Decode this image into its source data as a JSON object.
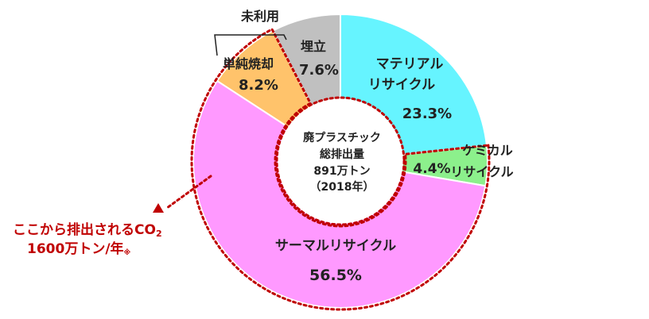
{
  "chart_data": {
    "type": "donut",
    "center_text": [
      "廃プラスチック",
      "総排出量",
      "891万トン",
      "（2018年）"
    ],
    "segments": [
      {
        "name": "マテリアル",
        "name2": "リサイクル",
        "value": 23.3,
        "label": "23.3%",
        "color": "#66f4ff"
      },
      {
        "name": "ケミカル",
        "name2": "リサイクル",
        "value": 4.4,
        "label": "4.4%",
        "color": "#8cf08c"
      },
      {
        "name": "サーマルリサイクル",
        "name2": "",
        "value": 56.5,
        "label": "56.5%",
        "color": "#ff99ff"
      },
      {
        "name": "単純焼却",
        "name2": "",
        "value": 8.2,
        "label": "8.2%",
        "color": "#ffc36b"
      },
      {
        "name": "埋立",
        "name2": "",
        "value": 7.6,
        "label": "7.6%",
        "color": "#c0c0c0"
      }
    ],
    "unused_label": "未利用",
    "callout": {
      "line1": "ここから排出されるCO",
      "sub": "2",
      "line2": "1600万トン/年",
      "note": "※",
      "color": "#c00000"
    }
  }
}
